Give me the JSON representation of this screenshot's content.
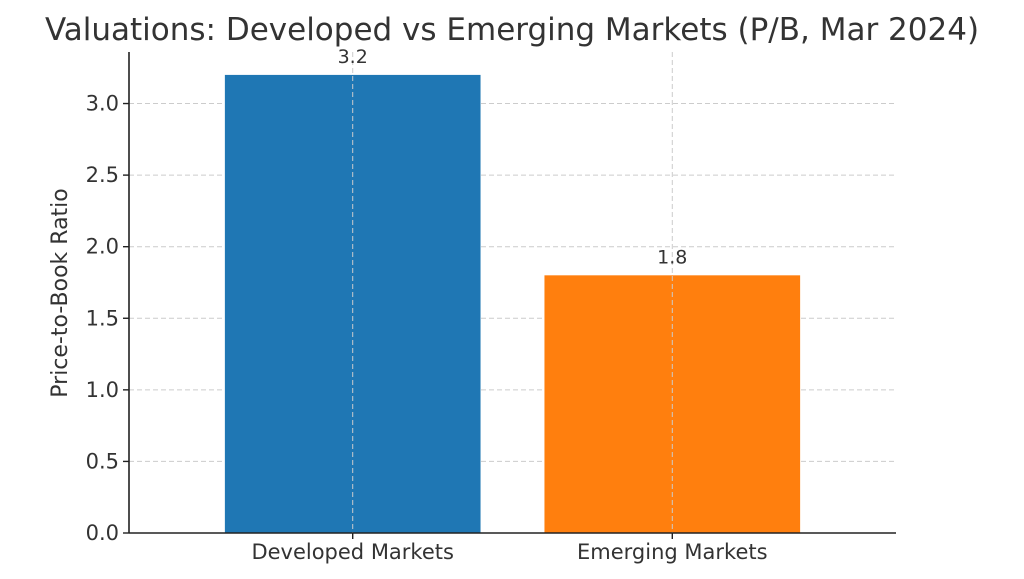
{
  "chart_data": {
    "type": "bar",
    "title": "Valuations: Developed vs Emerging Markets (P/B, Mar 2024)",
    "xlabel": "",
    "ylabel": "Price-to-Book Ratio",
    "categories": [
      "Developed Markets",
      "Emerging Markets"
    ],
    "values": [
      3.2,
      1.8
    ],
    "data_labels": [
      "3.2",
      "1.8"
    ],
    "colors": [
      "#1f77b4",
      "#ff7f0e"
    ],
    "ylim": [
      0,
      3.36
    ],
    "yticks": [
      0.0,
      0.5,
      1.0,
      1.5,
      2.0,
      2.5,
      3.0
    ],
    "ytick_labels": [
      "0.0",
      "0.5",
      "1.0",
      "1.5",
      "2.0",
      "2.5",
      "3.0"
    ],
    "grid": true,
    "legend": "none"
  }
}
